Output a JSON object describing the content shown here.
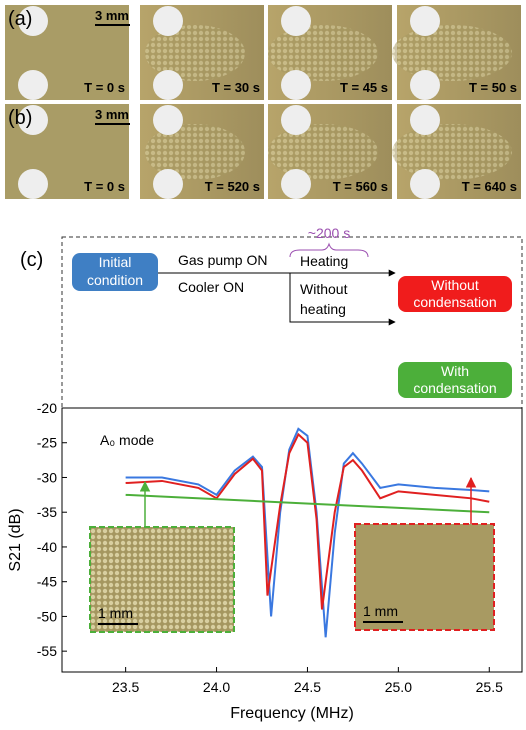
{
  "panels": {
    "a": {
      "label": "(a)",
      "scale": "3 mm",
      "times": [
        "T = 0 s",
        "T = 30 s",
        "T = 45 s",
        "T = 50 s"
      ]
    },
    "b": {
      "label": "(b)",
      "scale": "3 mm",
      "times": [
        "T = 0 s",
        "T = 520 s",
        "T = 560 s",
        "T = 640 s"
      ]
    },
    "c": {
      "label": "(c)"
    }
  },
  "diagram": {
    "initial": [
      "Initial",
      "condition"
    ],
    "step1": "Gas pump ON",
    "step2": "Cooler ON",
    "duration": "~200 s",
    "heating": "Heating",
    "no_heating": [
      "Without",
      "heating"
    ],
    "out_heat": [
      "Without",
      "condensation"
    ],
    "out_cool": [
      "With",
      "condensation"
    ]
  },
  "chart_data": {
    "type": "line",
    "annotation": "A₀ mode",
    "inset_scale": [
      "1 mm",
      "1 mm"
    ],
    "xlabel": "Frequency (MHz)",
    "ylabel": "S21 (dB)",
    "xlim": [
      23.15,
      25.68
    ],
    "ylim": [
      -58,
      -20
    ],
    "xticks": [
      23.5,
      {
        "value": 24,
        "label": "24.0"
      },
      24.5,
      {
        "value": 25,
        "label": "25.0"
      },
      25.5
    ],
    "yticks": [
      -20,
      -25,
      -30,
      -35,
      -40,
      -45,
      -50,
      -55
    ],
    "series": [
      {
        "color": "#3a78e0",
        "x": [
          23.5,
          23.7,
          23.9,
          24.0,
          24.1,
          24.2,
          24.25,
          24.3,
          24.35,
          24.4,
          24.45,
          24.5,
          24.55,
          24.6,
          24.65,
          24.7,
          24.75,
          24.8,
          24.9,
          25.0,
          25.2,
          25.4,
          25.5
        ],
        "values": [
          -30,
          -30,
          -31,
          -32.5,
          -29,
          -27,
          -28.5,
          -50,
          -35,
          -26,
          -23,
          -24,
          -35,
          -53,
          -38,
          -28,
          -26.5,
          -28,
          -31.5,
          -31,
          -31.5,
          -31.8,
          -32
        ]
      },
      {
        "color": "#e02020",
        "x": [
          23.5,
          23.7,
          23.9,
          24.0,
          24.1,
          24.2,
          24.25,
          24.28,
          24.35,
          24.4,
          24.45,
          24.5,
          24.55,
          24.58,
          24.65,
          24.7,
          24.75,
          24.8,
          24.9,
          25.0,
          25.2,
          25.4,
          25.5
        ],
        "values": [
          -30.8,
          -30.5,
          -31.5,
          -33,
          -29.5,
          -27.3,
          -29,
          -47,
          -34,
          -26.5,
          -23.8,
          -25,
          -36,
          -49,
          -35,
          -28.5,
          -27.5,
          -29,
          -33,
          -32,
          -32.5,
          -33,
          -33.5
        ]
      },
      {
        "color": "#4caf3a",
        "x": [
          23.5,
          25.5
        ],
        "values": [
          -32.5,
          -35
        ]
      }
    ]
  }
}
